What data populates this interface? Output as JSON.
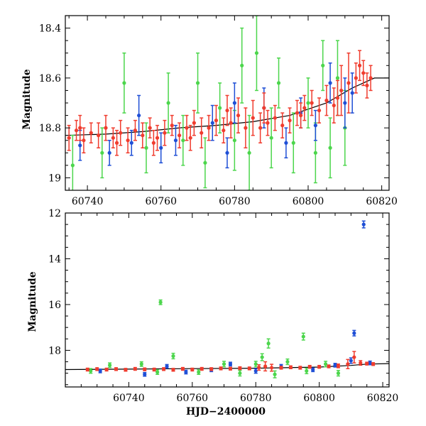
{
  "colors": {
    "red": "#f03c2e",
    "green": "#4cd64c",
    "blue": "#1f4fd6",
    "frame": "#000000",
    "model": "#000000"
  },
  "chart_data": [
    {
      "type": "scatter",
      "panel": "top",
      "xlabel": "",
      "ylabel": "Magnitude",
      "xlim": [
        60734,
        60822
      ],
      "ylim": [
        19.05,
        18.35
      ],
      "y_inverted": true,
      "xticks": [
        60740,
        60760,
        60780,
        60800,
        60820
      ],
      "xtick_labels": [
        "60740",
        "60760",
        "60780",
        "60800",
        "60820"
      ],
      "yticks": [
        18.4,
        18.6,
        18.8,
        19.0
      ],
      "ytick_labels": [
        "18.4",
        "18.6",
        "18.8",
        "19"
      ],
      "model_curve": {
        "x": [
          60734,
          60745,
          60755,
          60765,
          60775,
          60785,
          60795,
          60805,
          60812,
          60818,
          60822
        ],
        "y": [
          18.83,
          18.825,
          18.815,
          18.8,
          18.79,
          18.775,
          18.75,
          18.7,
          18.64,
          18.6,
          18.6
        ]
      },
      "series": [
        {
          "color_key": "red",
          "points": [
            [
              60735,
              18.84,
              0.05
            ],
            [
              60737,
              18.81,
              0.04
            ],
            [
              60739,
              18.85,
              0.05
            ],
            [
              60741,
              18.82,
              0.04
            ],
            [
              60743,
              18.83,
              0.05
            ],
            [
              60745,
              18.8,
              0.05
            ],
            [
              60747,
              18.84,
              0.04
            ],
            [
              60749,
              18.82,
              0.05
            ],
            [
              60751,
              18.85,
              0.05
            ],
            [
              60753,
              18.81,
              0.04
            ],
            [
              60755,
              18.83,
              0.05
            ],
            [
              60757,
              18.8,
              0.04
            ],
            [
              60759,
              18.84,
              0.05
            ],
            [
              60761,
              18.82,
              0.05
            ],
            [
              60763,
              18.79,
              0.04
            ],
            [
              60765,
              18.83,
              0.05
            ],
            [
              60767,
              18.8,
              0.05
            ],
            [
              60769,
              18.78,
              0.05
            ],
            [
              60771,
              18.82,
              0.06
            ],
            [
              60773,
              18.8,
              0.05
            ],
            [
              60775,
              18.77,
              0.06
            ],
            [
              60777,
              18.81,
              0.05
            ],
            [
              60779,
              18.78,
              0.06
            ],
            [
              60781,
              18.75,
              0.07
            ],
            [
              60783,
              18.8,
              0.08
            ],
            [
              60785,
              18.76,
              0.07
            ],
            [
              60787,
              18.8,
              0.06
            ],
            [
              60789,
              18.78,
              0.05
            ],
            [
              60791,
              18.76,
              0.05
            ],
            [
              60793,
              18.79,
              0.05
            ],
            [
              60795,
              18.77,
              0.05
            ],
            [
              60797,
              18.74,
              0.05
            ],
            [
              60799,
              18.72,
              0.05
            ],
            [
              60801,
              18.7,
              0.05
            ],
            [
              60803,
              18.73,
              0.05
            ],
            [
              60805,
              18.69,
              0.06
            ],
            [
              60807,
              18.71,
              0.07
            ],
            [
              60809,
              18.65,
              0.1
            ],
            [
              60811,
              18.62,
              0.12
            ],
            [
              60813,
              18.6,
              0.06
            ],
            [
              60815,
              18.58,
              0.05
            ],
            [
              60817,
              18.6,
              0.05
            ],
            [
              60738,
              18.8,
              0.05
            ],
            [
              60748,
              18.86,
              0.05
            ],
            [
              60758,
              18.86,
              0.05
            ],
            [
              60768,
              18.84,
              0.05
            ],
            [
              60778,
              18.73,
              0.06
            ],
            [
              60788,
              18.72,
              0.06
            ],
            [
              60798,
              18.75,
              0.05
            ],
            [
              60808,
              18.68,
              0.07
            ],
            [
              60814,
              18.55,
              0.06
            ],
            [
              60816,
              18.63,
              0.05
            ]
          ]
        },
        {
          "color_key": "green",
          "points": [
            [
              60736,
              18.95,
              0.12
            ],
            [
              60744,
              18.9,
              0.1
            ],
            [
              60750,
              18.62,
              0.12
            ],
            [
              60756,
              18.88,
              0.1
            ],
            [
              60762,
              18.7,
              0.12
            ],
            [
              60766,
              18.85,
              0.1
            ],
            [
              60770,
              18.62,
              0.12
            ],
            [
              60772,
              18.94,
              0.1
            ],
            [
              60776,
              18.72,
              0.1
            ],
            [
              60780,
              18.85,
              0.12
            ],
            [
              60782,
              18.55,
              0.15
            ],
            [
              60784,
              18.9,
              0.15
            ],
            [
              60786,
              18.5,
              0.15
            ],
            [
              60790,
              18.84,
              0.12
            ],
            [
              60792,
              18.62,
              0.1
            ],
            [
              60796,
              18.86,
              0.12
            ],
            [
              60800,
              18.7,
              0.1
            ],
            [
              60802,
              18.9,
              0.12
            ],
            [
              60804,
              18.55,
              0.1
            ],
            [
              60806,
              18.88,
              0.12
            ],
            [
              60808,
              18.6,
              0.15
            ],
            [
              60810,
              18.8,
              0.15
            ]
          ]
        },
        {
          "color_key": "blue",
          "points": [
            [
              60738,
              18.87,
              0.06
            ],
            [
              60746,
              18.9,
              0.05
            ],
            [
              60752,
              18.86,
              0.05
            ],
            [
              60754,
              18.75,
              0.08
            ],
            [
              60760,
              18.88,
              0.06
            ],
            [
              60764,
              18.85,
              0.06
            ],
            [
              60774,
              18.78,
              0.07
            ],
            [
              60778,
              18.9,
              0.06
            ],
            [
              60780,
              18.7,
              0.08
            ],
            [
              60788,
              18.72,
              0.08
            ],
            [
              60794,
              18.86,
              0.06
            ],
            [
              60798,
              18.74,
              0.06
            ],
            [
              60802,
              18.79,
              0.06
            ],
            [
              60806,
              18.62,
              0.08
            ],
            [
              60810,
              18.7,
              0.1
            ],
            [
              60812,
              18.66,
              0.08
            ]
          ]
        }
      ]
    },
    {
      "type": "scatter",
      "panel": "bottom",
      "xlabel": "HJD−2400000",
      "ylabel": "Magnitude",
      "xlim": [
        60720,
        60822
      ],
      "ylim": [
        19.6,
        12.0
      ],
      "y_inverted": true,
      "xticks": [
        60740,
        60760,
        60780,
        60800,
        60820
      ],
      "xtick_labels": [
        "60740",
        "60760",
        "60780",
        "60800",
        "60820"
      ],
      "yticks": [
        12,
        14,
        16,
        18
      ],
      "ytick_labels": [
        "12",
        "14",
        "16",
        "18"
      ],
      "model_curve": {
        "x": [
          60720,
          60740,
          60760,
          60780,
          60800,
          60810,
          60815,
          60822
        ],
        "y": [
          18.84,
          18.82,
          18.8,
          18.78,
          18.73,
          18.66,
          18.6,
          18.58
        ]
      },
      "series": [
        {
          "color_key": "red",
          "points": [
            [
              60727,
              18.84,
              0.06
            ],
            [
              60730,
              18.82,
              0.06
            ],
            [
              60733,
              18.84,
              0.06
            ],
            [
              60736,
              18.82,
              0.06
            ],
            [
              60739,
              18.85,
              0.06
            ],
            [
              60742,
              18.81,
              0.06
            ],
            [
              60745,
              18.83,
              0.06
            ],
            [
              60748,
              18.84,
              0.06
            ],
            [
              60751,
              18.82,
              0.06
            ],
            [
              60754,
              18.85,
              0.06
            ],
            [
              60757,
              18.81,
              0.06
            ],
            [
              60760,
              18.84,
              0.06
            ],
            [
              60763,
              18.81,
              0.06
            ],
            [
              60766,
              18.82,
              0.06
            ],
            [
              60769,
              18.79,
              0.06
            ],
            [
              60772,
              18.8,
              0.06
            ],
            [
              60775,
              18.78,
              0.06
            ],
            [
              60778,
              18.79,
              0.06
            ],
            [
              60781,
              18.75,
              0.12
            ],
            [
              60783,
              18.7,
              0.2
            ],
            [
              60785,
              18.76,
              0.15
            ],
            [
              60788,
              18.76,
              0.06
            ],
            [
              60791,
              18.74,
              0.06
            ],
            [
              60794,
              18.76,
              0.06
            ],
            [
              60797,
              18.72,
              0.06
            ],
            [
              60800,
              18.72,
              0.06
            ],
            [
              60803,
              18.7,
              0.06
            ],
            [
              60806,
              18.68,
              0.08
            ],
            [
              60809,
              18.6,
              0.2
            ],
            [
              60811,
              18.3,
              0.25
            ],
            [
              60813,
              18.55,
              0.1
            ],
            [
              60815,
              18.58,
              0.06
            ],
            [
              60817,
              18.6,
              0.06
            ]
          ]
        },
        {
          "color_key": "green",
          "points": [
            [
              60728,
              18.9,
              0.1
            ],
            [
              60734,
              18.65,
              0.1
            ],
            [
              60744,
              18.6,
              0.1
            ],
            [
              60749,
              18.95,
              0.1
            ],
            [
              60750,
              15.9,
              0.1
            ],
            [
              60754,
              18.25,
              0.12
            ],
            [
              60762,
              18.95,
              0.1
            ],
            [
              60770,
              18.6,
              0.12
            ],
            [
              60775,
              19.0,
              0.12
            ],
            [
              60780,
              18.6,
              0.12
            ],
            [
              60782,
              18.3,
              0.15
            ],
            [
              60784,
              17.7,
              0.2
            ],
            [
              60786,
              19.05,
              0.15
            ],
            [
              60790,
              18.5,
              0.12
            ],
            [
              60795,
              17.4,
              0.15
            ],
            [
              60796,
              18.9,
              0.12
            ],
            [
              60802,
              18.6,
              0.12
            ],
            [
              60806,
              19.0,
              0.12
            ]
          ]
        },
        {
          "color_key": "blue",
          "points": [
            [
              60731,
              18.9,
              0.08
            ],
            [
              60745,
              19.05,
              0.08
            ],
            [
              60752,
              18.7,
              0.08
            ],
            [
              60758,
              18.95,
              0.08
            ],
            [
              60766,
              18.85,
              0.08
            ],
            [
              60772,
              18.6,
              0.08
            ],
            [
              60780,
              18.9,
              0.1
            ],
            [
              60788,
              18.7,
              0.08
            ],
            [
              60798,
              18.85,
              0.08
            ],
            [
              60805,
              18.65,
              0.08
            ],
            [
              60810,
              18.45,
              0.12
            ],
            [
              60811,
              17.25,
              0.12
            ],
            [
              60814,
              12.5,
              0.15
            ],
            [
              60816,
              18.55,
              0.08
            ]
          ]
        }
      ]
    }
  ]
}
